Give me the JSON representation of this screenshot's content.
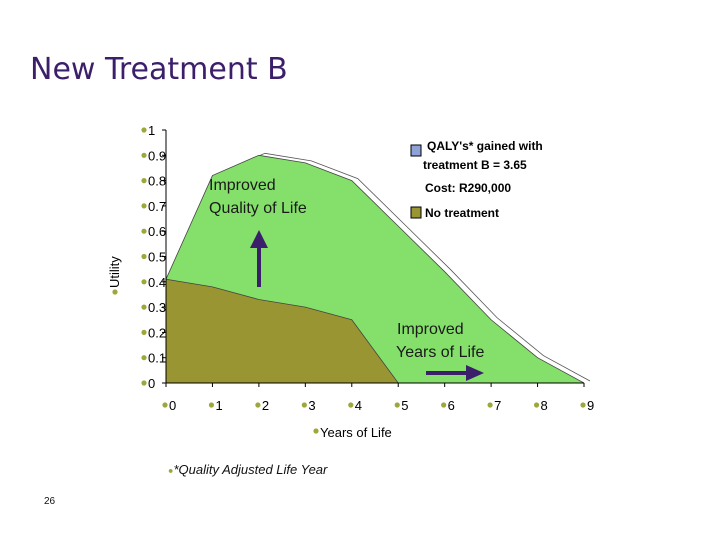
{
  "slide": {
    "title": "New Treatment B",
    "footnote": "*Quality Adjusted Life Year",
    "page_number": "26"
  },
  "colors": {
    "title": "#3b1f6b",
    "treatment_area": "#84e06a",
    "no_treatment_area": "#9a9533",
    "arrow": "#3b1f6b",
    "bullet": "#9ea83a",
    "legend_treatment_box": "#8ea2d8"
  },
  "chart_data": {
    "type": "area",
    "xlabel": "Years of Life",
    "ylabel": "Utility",
    "xlim": [
      0,
      9
    ],
    "ylim": [
      0,
      1
    ],
    "x_ticks": [
      "0",
      "1",
      "2",
      "3",
      "4",
      "5",
      "6",
      "7",
      "8",
      "9"
    ],
    "y_ticks": [
      "0",
      "0.1",
      "0.2",
      "0.3",
      "0.4",
      "0.5",
      "0.6",
      "0.7",
      "0.8",
      "0.9",
      "1"
    ],
    "series": [
      {
        "name": "QALY's* gained with treatment B = 3.65",
        "x": [
          0,
          1,
          2,
          3,
          4,
          5,
          6,
          7,
          8,
          9
        ],
        "values": [
          0.41,
          0.82,
          0.9,
          0.87,
          0.8,
          0.62,
          0.44,
          0.25,
          0.1,
          0.0
        ]
      },
      {
        "name": "No treatment",
        "x": [
          0,
          1,
          2,
          3,
          4,
          5
        ],
        "values": [
          0.41,
          0.38,
          0.33,
          0.3,
          0.25,
          0.0
        ]
      }
    ],
    "legend": {
      "treatment_line1": "QALY's* gained with",
      "treatment_line2": "treatment B = 3.65",
      "cost": "Cost: R290,000",
      "no_treatment": "No treatment"
    },
    "annotations": {
      "quality_line1": "Improved",
      "quality_line2": "Quality of Life",
      "years_line1": "Improved",
      "years_line2": "Years of Life"
    }
  }
}
